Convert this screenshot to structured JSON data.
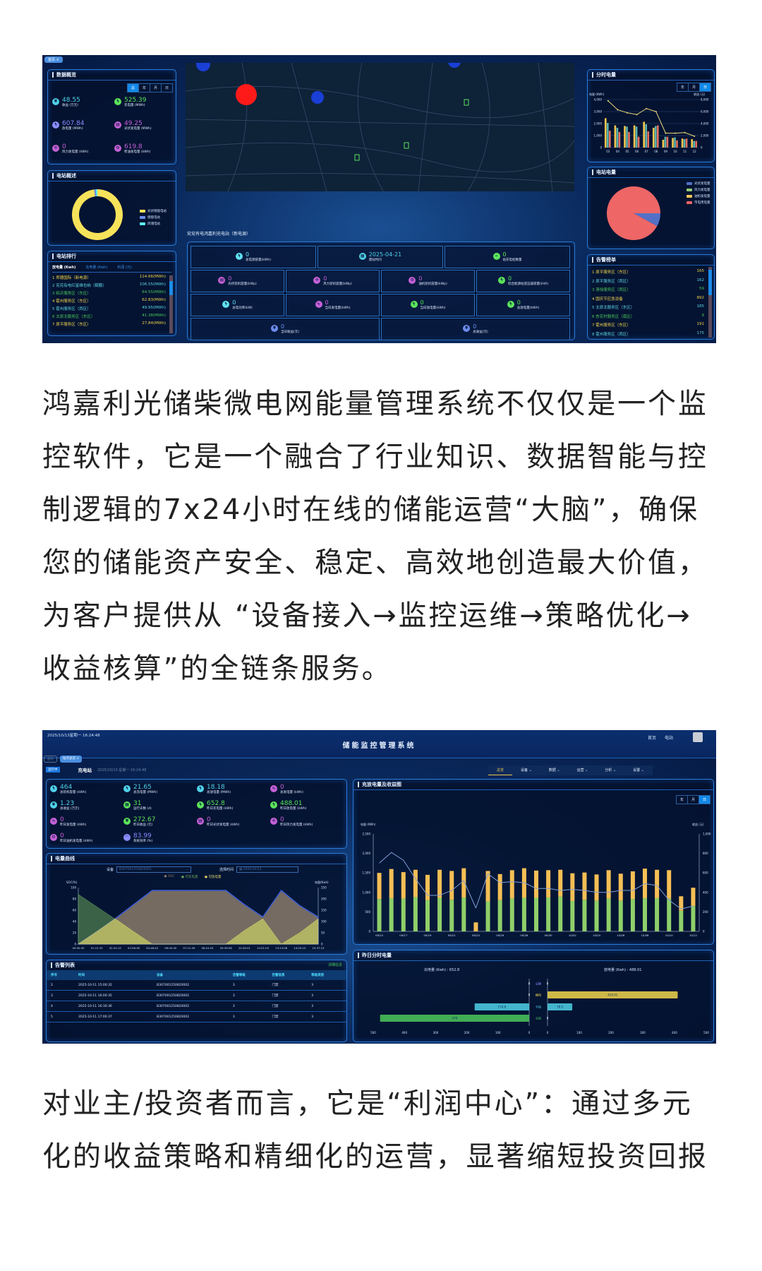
{
  "screenshot1": {
    "tag": "首页",
    "overview": {
      "title": "数据概览",
      "tabs": [
        "总",
        "年",
        "月",
        "日"
      ],
      "active_tab": 0,
      "stats": [
        {
          "value": "48.55",
          "label": "收益 (万元)",
          "color": "#4fd1e8",
          "icon": "yen-icon"
        },
        {
          "value": "525.39",
          "label": "充电量 (MWh)",
          "color": "#5be35b",
          "icon": "bolt-icon"
        },
        {
          "value": "607.84",
          "label": "放电量 (MWh)",
          "color": "#8a8cff",
          "icon": "bolt-icon"
        },
        {
          "value": "49.25",
          "label": "光伏发电量 (MWh)",
          "color": "#c561d8",
          "icon": "solar-panel-icon"
        },
        {
          "value": "0",
          "label": "风力发电量 (kWh)",
          "color": "#c561d8",
          "icon": "wind-turbine-icon"
        },
        {
          "value": "619.8",
          "label": "柴油发电量 (kWh)",
          "color": "#c561d8",
          "icon": "generator-icon"
        }
      ]
    },
    "summary": {
      "title": "电站概述",
      "legend": [
        {
          "label": "光伏储能电站",
          "color": "#f7e35a",
          "value": 98
        },
        {
          "label": "储能电站",
          "color": "#6d8ef0",
          "value": 1
        },
        {
          "label": "风储电站",
          "color": "#5ef0f0",
          "value": 1
        }
      ]
    },
    "ranking": {
      "title": "电站排行",
      "tabs": [
        "放电量 (Kwh)",
        "充电量 (Kwh)",
        "利润 (元)"
      ],
      "active_tab": 0,
      "items": [
        {
          "rank": "1",
          "name": "郑德国际（新电源）",
          "value": "114.66(MWh)",
          "color": "#f2d64b"
        },
        {
          "rank": "2",
          "name": "兖兖有电红星维也纳（觐鹏）",
          "value": "106.55(MWh)",
          "color": "#5fd6e6"
        },
        {
          "rank": "3",
          "name": "临沂服务区（东区）",
          "value": "64.55(MWh)",
          "color": "#4cc85a"
        },
        {
          "rank": "4",
          "name": "霍州服务区（东区）",
          "value": "62.83(MWh)",
          "color": "#f2d64b"
        },
        {
          "rank": "5",
          "name": "霍州服务区（西区）",
          "value": "49.95(MWh)",
          "color": "#5fd6e6"
        },
        {
          "rank": "6",
          "name": "太原北服务区（东区）",
          "value": "41.38(MWh)",
          "color": "#4cc85a"
        },
        {
          "rank": "7",
          "name": "原平服务区（东区）",
          "value": "27.84(MWh)",
          "color": "#f2d64b"
        }
      ]
    },
    "station": {
      "title": "兖兖有电鸿嘉利充电站（新电源）",
      "rows": [
        [
          {
            "value": "0",
            "label": "总电源容量(kWh)",
            "color": "#5fe0f0",
            "icon": "bolt-icon"
          },
          {
            "value": "2025-04-21",
            "label": "建站时间",
            "color": "#4fd1e8",
            "icon": "calendar-icon"
          },
          {
            "value": "0",
            "label": "站充电桩数量",
            "color": "#5be35b",
            "icon": "charger-icon"
          }
        ],
        [
          {
            "value": "0",
            "label": "光伏装机容量(kWp)",
            "color": "#c561d8",
            "icon": "solar-panel-icon"
          },
          {
            "value": "0",
            "label": "风力装机容量(kWp)",
            "color": "#c561d8",
            "icon": "wind-turbine-icon"
          },
          {
            "value": "0",
            "label": "油机装机容量(kWp)",
            "color": "#c561d8",
            "icon": "generator-icon"
          },
          {
            "value": "0",
            "label": "综合能源站变压器容量(kVA)",
            "color": "#5be35b",
            "icon": "bolt-icon"
          }
        ],
        [
          {
            "value": "0",
            "label": "总电功率(kW)",
            "color": "#5fe0f0",
            "icon": "bolt-icon"
          },
          {
            "value": "0",
            "label": "当日发电量(kWh)",
            "color": "#c561d8",
            "icon": "wave-icon"
          },
          {
            "value": "0",
            "label": "当日放电量(kWh)",
            "color": "#5be35b",
            "icon": "bolt-icon"
          },
          {
            "value": "0",
            "label": "总放电量(kWh)",
            "color": "#5be35b",
            "icon": "bolt-icon"
          }
        ],
        [
          {
            "value": "0",
            "label": "当日收益(元)",
            "color": "#6d8ef0",
            "icon": "yen-icon"
          },
          {
            "value": "0",
            "label": "总收益(元)",
            "color": "#6d8ef0",
            "icon": "yen-icon"
          }
        ]
      ]
    },
    "hourly": {
      "title": "分时电量",
      "tabs": [
        "年",
        "月",
        "日"
      ],
      "active_tab": 2,
      "ylabel_left": "电量 (KWh)",
      "ylabel_right": "收益 (元)",
      "categories": [
        "03",
        "04",
        "05",
        "06",
        "07",
        "08",
        "09",
        "10",
        "11",
        "12"
      ],
      "left_ticks": [
        "0",
        "1,000",
        "2,000",
        "3,000",
        "4,000"
      ],
      "right_ticks": [
        "0",
        "2,000",
        "4,000",
        "6,000",
        "8,000"
      ],
      "ylim_left": [
        0,
        4000
      ],
      "ylim_right": [
        0,
        8000
      ],
      "bars": [
        {
          "color": "#f5c74e",
          "values": [
            2450,
            1850,
            1800,
            1850,
            2150,
            1650,
            650,
            800,
            750,
            700
          ]
        },
        {
          "color": "#5ab5b0",
          "values": [
            2050,
            1650,
            1750,
            1750,
            1950,
            1800,
            900,
            850,
            700,
            550
          ]
        },
        {
          "color": "#e8705f",
          "values": [
            1400,
            1300,
            1300,
            900,
            1350,
            1850,
            900,
            600,
            750,
            550
          ]
        }
      ],
      "line": {
        "color": "#e8d97a",
        "values": [
          7800,
          6300,
          5800,
          5500,
          6500,
          6000,
          2400,
          2400,
          2500,
          1900
        ]
      }
    },
    "energy": {
      "title": "电站电量",
      "legend": [
        {
          "label": "光伏发电量",
          "color": "#5470c6",
          "value": 8
        },
        {
          "label": "风力发电量",
          "color": "#91cc75",
          "value": 0
        },
        {
          "label": "油机发电量",
          "color": "#fac858",
          "value": 0
        },
        {
          "label": "市电用电量",
          "color": "#ee6666",
          "value": 92
        }
      ]
    },
    "alarms": {
      "title": "告警榜单",
      "items": [
        {
          "rank": "1",
          "name": "原平服务区（东区）",
          "value": "165",
          "color": "#f2d64b"
        },
        {
          "rank": "2",
          "name": "原平服务区（西区）",
          "value": "162",
          "color": "#5fd6e6"
        },
        {
          "rank": "3",
          "name": "清徐服务区（西区）",
          "value": "59",
          "color": "#4cc85a"
        },
        {
          "rank": "4",
          "name": "国庆节应急设备",
          "value": "892",
          "color": "#f2d64b"
        },
        {
          "rank": "5",
          "name": "太原北服务区（东区）",
          "value": "185",
          "color": "#5fd6e6"
        },
        {
          "rank": "6",
          "name": "杏花村服务区（南区）",
          "value": "9",
          "color": "#4cc85a"
        },
        {
          "rank": "7",
          "name": "霍州服务区（东区）",
          "value": "191",
          "color": "#f2d64b"
        },
        {
          "rank": "8",
          "name": "霍州服务区（西区）",
          "value": "175",
          "color": "#5fd6e6"
        }
      ]
    }
  },
  "paragraph1": [
    "鸿嘉利光储柴微电网能量管理系统不仅仅是一个监",
    "控软件，它是一个融合了行业知识、数据智能与控",
    "制逻辑的7x24小时在线的储能运营“大脑”，确保",
    "您的储能资产安全、稳定、高效地创造最大价值，",
    "为客户提供从 “设备接入→监控运维→策略优化→",
    "收益核算”的全链条服务。"
  ],
  "screenshot2": {
    "datetime": "2025/10/13星期一 16:24:48",
    "title": "储能监控管理系统",
    "top_links": [
      "首页",
      "电站"
    ],
    "tags": [
      "首页",
      "站点总览 ×"
    ],
    "status": "运行中",
    "station_name": "充电站",
    "station_time": "2025/10/13 星期一 16:24:48",
    "nav": [
      "总览",
      "设备",
      "数据",
      "运营",
      "分析",
      "设置"
    ],
    "nav_active": 0,
    "stats": [
      {
        "value": "464",
        "label": "总装机容量 (kWh)",
        "color": "#4fd1e8",
        "icon": "bolt-icon"
      },
      {
        "value": "21.65",
        "label": "总充电量 (MWh)",
        "color": "#4fd1e8",
        "icon": "bolt-icon"
      },
      {
        "value": "18.18",
        "label": "总放电量 (MWh)",
        "color": "#4fd1e8",
        "icon": "bolt-icon"
      },
      {
        "value": "0",
        "label": "总发电量 (kWh)",
        "color": "#c561d8",
        "icon": "wave-icon"
      },
      {
        "value": "1.23",
        "label": "总收益 (万元)",
        "color": "#4fd1e8",
        "icon": "yen-icon"
      },
      {
        "value": "31",
        "label": "运行天数 (d)",
        "color": "#5be35b",
        "icon": "calendar-icon"
      },
      {
        "value": "652.8",
        "label": "昨日充电量 (kWh)",
        "color": "#5be35b",
        "icon": "bolt-icon"
      },
      {
        "value": "488.01",
        "label": "昨日放电量 (kWh)",
        "color": "#5be35b",
        "icon": "bolt-icon"
      },
      {
        "value": "0",
        "label": "昨日发电量 (kWh)",
        "color": "#c561d8",
        "icon": "wave-icon"
      },
      {
        "value": "272.67",
        "label": "昨日收益 (元)",
        "color": "#5be35b",
        "icon": "yen-icon"
      },
      {
        "value": "0",
        "label": "昨日光伏发电量 (kWh)",
        "color": "#c561d8",
        "icon": "solar-panel-icon"
      },
      {
        "value": "0",
        "label": "昨日风力发电量 (kWh)",
        "color": "#c561d8",
        "icon": "wind-turbine-icon"
      },
      {
        "value": "0",
        "label": "昨日油机发电量 (kWh)",
        "color": "#c561d8",
        "icon": "generator-icon"
      },
      {
        "value": "83.99",
        "label": "系统效率 (%)",
        "color": "#8a8cff",
        "icon": "gauge-icon"
      }
    ],
    "curve": {
      "title": "电量曲线",
      "device_label": "设备",
      "device_value": "B307001250820001",
      "time_label": "选择时间",
      "time_value": "2025/10/13",
      "ylabel_left": "SOC(%)",
      "ylabel_right": "电量(Kwh)",
      "left_ticks": [
        "0",
        "20",
        "40",
        "60",
        "80",
        "100"
      ],
      "right_ticks": [
        "0",
        "50",
        "100",
        "150",
        "200",
        "250"
      ],
      "x": [
        "00:00:30",
        "01:12:32",
        "02:24:15",
        "03:36:38",
        "04:48:40",
        "06:00:45",
        "07:12:49",
        "08:24:54",
        "09:36:58",
        "10:49:01",
        "12:01:04",
        "13:13:06",
        "14:25:10",
        "15:37:13"
      ],
      "series": [
        {
          "name": "SOC",
          "color": "#8a7a6a",
          "values": [
            0,
            22,
            45,
            70,
            95,
            95,
            95,
            95,
            95,
            70,
            48,
            95,
            68,
            48
          ]
        },
        {
          "name": "可充电量",
          "color": "#6aa35a",
          "values": [
            220,
            165,
            110,
            55,
            0,
            0,
            0,
            0,
            0,
            60,
            112,
            0,
            50,
            112
          ]
        },
        {
          "name": "可放电量",
          "color": "#e6d36a",
          "values": [
            0,
            55,
            112,
            55,
            0,
            0,
            0,
            0,
            0,
            60,
            112,
            0,
            50,
            112
          ]
        }
      ]
    },
    "alarm_table": {
      "title": "告警列表",
      "link": "详细信息",
      "headers": [
        "序号",
        "时间",
        "设备",
        "告警等级",
        "告警信息",
        "等级类型"
      ],
      "rows": [
        [
          "2",
          "2025-10-11 15:00:32",
          "B307001250820002",
          "3",
          "门禁",
          "3"
        ],
        [
          "3",
          "2025-10-11 16:00:35",
          "B307001250820002",
          "3",
          "门禁",
          "3"
        ],
        [
          "4",
          "2025-10-11 16:30:36",
          "B307001250820002",
          "3",
          "门禁",
          "3"
        ],
        [
          "5",
          "2025-10-11 17:00:37",
          "B307001250820002",
          "3",
          "门禁",
          "3"
        ]
      ]
    },
    "charge_chart": {
      "title": "充放电量及收益图",
      "tabs": [
        "年",
        "月",
        "日"
      ],
      "active_tab": 2,
      "ylabel_left": "电量 (KWh)",
      "ylabel_right": "收益 (元)",
      "ylim_left": [
        0,
        2500
      ],
      "ylim_right": [
        0,
        1000
      ],
      "left_ticks": [
        "0",
        "500",
        "1,000",
        "1,500",
        "2,000",
        "2,500"
      ],
      "right_ticks": [
        "0",
        "200",
        "400",
        "600",
        "800",
        "1,000"
      ],
      "categories": [
        "09/15",
        "09/16",
        "09/17",
        "09/18",
        "09/19",
        "09/20",
        "09/21",
        "09/22",
        "09/24",
        "09/25",
        "09/26",
        "09/27",
        "09/28",
        "09/29",
        "09/30",
        "10/01",
        "10/02",
        "10/03",
        "10/04",
        "10/05",
        "10/06",
        "10/07",
        "10/08",
        "10/09",
        "10/10",
        "10/11",
        "10/12"
      ],
      "series": [
        {
          "color": "#8fcf6a",
          "values": [
            830,
            850,
            840,
            880,
            800,
            860,
            810,
            870,
            0,
            770,
            800,
            840,
            860,
            860,
            870,
            890,
            780,
            810,
            790,
            840,
            790,
            830,
            850,
            850,
            840,
            530,
            650
          ]
        },
        {
          "color": "#f5bf55",
          "values": [
            670,
            750,
            680,
            700,
            650,
            720,
            740,
            750,
            230,
            780,
            670,
            730,
            760,
            700,
            700,
            690,
            710,
            700,
            670,
            730,
            690,
            710,
            760,
            730,
            730,
            370,
            470
          ]
        }
      ],
      "line": {
        "color": "#7f9fd6",
        "values": [
          700,
          810,
          730,
          540,
          370,
          370,
          420,
          520,
          240,
          590,
          500,
          510,
          500,
          440,
          440,
          420,
          430,
          420,
          400,
          400,
          420,
          420,
          490,
          470,
          320,
          230,
          260
        ]
      }
    },
    "yesterday": {
      "title": "昨日分时电量",
      "charge_label": "充电量 (Kwh) : 652.8",
      "discharge_label": "放电量 (Kwh) : 488.01",
      "periods": [
        "尖峰",
        "峰段",
        "平段",
        "谷段"
      ],
      "period_colors": [
        "#8a8cff",
        "#f2d64b",
        "#4fd1e8",
        "#4cc85a"
      ],
      "charge": [
        0,
        0,
        174.8,
        478
      ],
      "discharge": [
        0,
        410.01,
        78.0,
        0
      ],
      "charge_labels": [
        "0",
        "0",
        "174.8",
        "478"
      ],
      "discharge_labels": [
        "0",
        "410.01",
        "78.0",
        "0"
      ],
      "axis_left": [
        "500",
        "400",
        "300",
        "200",
        "100",
        "0"
      ],
      "axis_right": [
        "0",
        "100",
        "200",
        "300",
        "400",
        "500"
      ]
    }
  },
  "paragraph2": [
    "对业主/投资者而言，它是“利润中心”：通过多元",
    "化的收益策略和精细化的运营，显著缩短投资回报"
  ]
}
